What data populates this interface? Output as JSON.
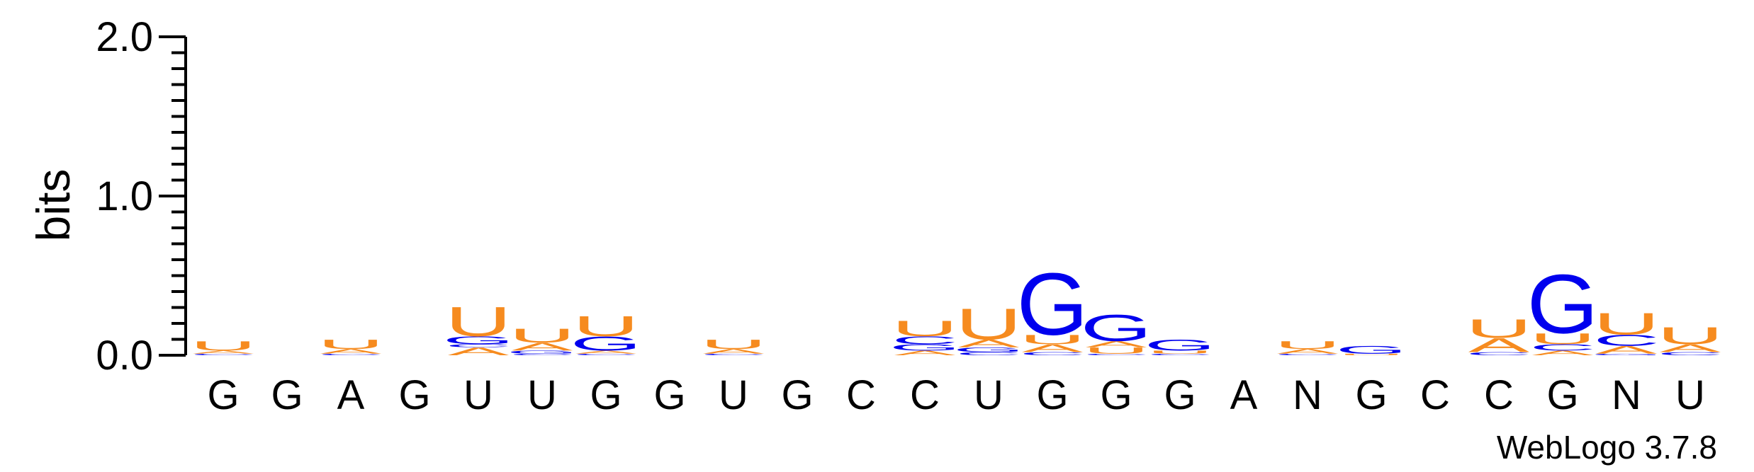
{
  "chart_data": {
    "type": "sequence-logo",
    "ylabel": "bits",
    "ylim": [
      0,
      2.0
    ],
    "yticks": [
      "0.0",
      "1.0",
      "2.0"
    ],
    "colors": {
      "A": "#f68b1f",
      "U": "#f68b1f",
      "G": "#0000ee",
      "C": "#0000ee"
    },
    "credit": "WebLogo 3.7.8",
    "positions": [
      {
        "label": "G",
        "stack": [
          [
            "C",
            0.01
          ],
          [
            "A",
            0.02
          ],
          [
            "U",
            0.06
          ]
        ]
      },
      {
        "label": "G",
        "stack": []
      },
      {
        "label": "A",
        "stack": [
          [
            "C",
            0.01
          ],
          [
            "A",
            0.03
          ],
          [
            "U",
            0.06
          ]
        ]
      },
      {
        "label": "G",
        "stack": []
      },
      {
        "label": "U",
        "stack": [
          [
            "A",
            0.05
          ],
          [
            "C",
            0.02
          ],
          [
            "G",
            0.05
          ],
          [
            "U",
            0.19
          ]
        ]
      },
      {
        "label": "U",
        "stack": [
          [
            "C",
            0.01
          ],
          [
            "G",
            0.02
          ],
          [
            "A",
            0.05
          ],
          [
            "U",
            0.09
          ]
        ]
      },
      {
        "label": "G",
        "stack": [
          [
            "C",
            0.01
          ],
          [
            "A",
            0.02
          ],
          [
            "G",
            0.09
          ],
          [
            "U",
            0.13
          ]
        ]
      },
      {
        "label": "G",
        "stack": []
      },
      {
        "label": "U",
        "stack": [
          [
            "C",
            0.01
          ],
          [
            "A",
            0.03
          ],
          [
            "U",
            0.06
          ]
        ]
      },
      {
        "label": "G",
        "stack": []
      },
      {
        "label": "C",
        "stack": []
      },
      {
        "label": "C",
        "stack": [
          [
            "A",
            0.03
          ],
          [
            "G",
            0.04
          ],
          [
            "C",
            0.05
          ],
          [
            "U",
            0.1
          ]
        ]
      },
      {
        "label": "U",
        "stack": [
          [
            "C",
            0.02
          ],
          [
            "G",
            0.03
          ],
          [
            "A",
            0.05
          ],
          [
            "U",
            0.2
          ]
        ]
      },
      {
        "label": "G",
        "stack": [
          [
            "C",
            0.02
          ],
          [
            "A",
            0.05
          ],
          [
            "U",
            0.06
          ],
          [
            "G",
            0.4
          ]
        ]
      },
      {
        "label": "G",
        "stack": [
          [
            "C",
            0.01
          ],
          [
            "U",
            0.04
          ],
          [
            "A",
            0.04
          ],
          [
            "G",
            0.17
          ]
        ]
      },
      {
        "label": "G",
        "stack": [
          [
            "C",
            0.01
          ],
          [
            "U",
            0.02
          ],
          [
            "G",
            0.07
          ]
        ]
      },
      {
        "label": "A",
        "stack": []
      },
      {
        "label": "N",
        "stack": [
          [
            "C",
            0.01
          ],
          [
            "A",
            0.03
          ],
          [
            "U",
            0.05
          ]
        ]
      },
      {
        "label": "G",
        "stack": [
          [
            "U",
            0.01
          ],
          [
            "G",
            0.05
          ]
        ]
      },
      {
        "label": "C",
        "stack": []
      },
      {
        "label": "C",
        "stack": [
          [
            "C",
            0.02
          ],
          [
            "A",
            0.09
          ],
          [
            "U",
            0.12
          ]
        ]
      },
      {
        "label": "G",
        "stack": [
          [
            "A",
            0.03
          ],
          [
            "C",
            0.04
          ],
          [
            "U",
            0.07
          ],
          [
            "G",
            0.38
          ]
        ]
      },
      {
        "label": "N",
        "stack": [
          [
            "G",
            0.01
          ],
          [
            "A",
            0.05
          ],
          [
            "C",
            0.07
          ],
          [
            "U",
            0.14
          ]
        ]
      },
      {
        "label": "U",
        "stack": [
          [
            "C",
            0.02
          ],
          [
            "A",
            0.05
          ],
          [
            "U",
            0.11
          ]
        ]
      }
    ]
  }
}
